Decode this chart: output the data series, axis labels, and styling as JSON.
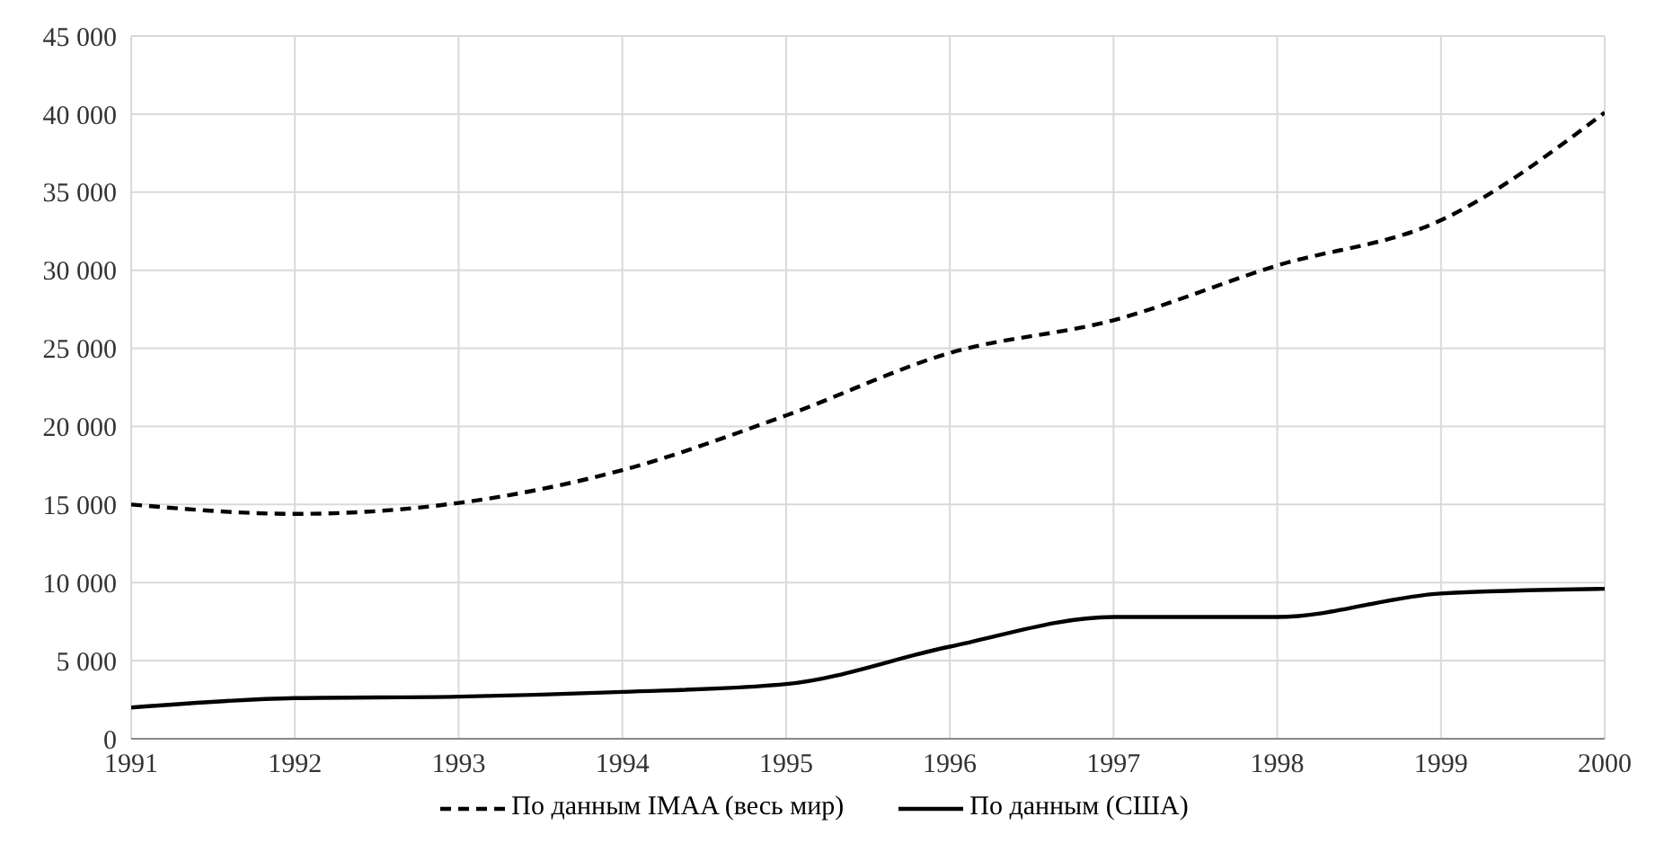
{
  "chart_data": {
    "type": "line",
    "x": [
      1991,
      1992,
      1993,
      1994,
      1995,
      1996,
      1997,
      1998,
      1999,
      2000
    ],
    "series": [
      {
        "name": "По данным IMAA (весь мир)",
        "color": "#000000",
        "line_style": "dashed",
        "values": [
          15000,
          14400,
          15100,
          17200,
          20700,
          24700,
          26800,
          30300,
          33200,
          40100
        ]
      },
      {
        "name": "По данным (США)",
        "color": "#000000",
        "line_style": "solid",
        "values": [
          2000,
          2600,
          2700,
          3000,
          3500,
          5900,
          7800,
          7800,
          9300,
          9600
        ]
      }
    ],
    "xlim": [
      1991,
      2000
    ],
    "xticks": [
      1991,
      1992,
      1993,
      1994,
      1995,
      1996,
      1997,
      1998,
      1999,
      2000
    ],
    "ylim": [
      0,
      45000
    ],
    "yticks": [
      {
        "value": 0,
        "label": "0"
      },
      {
        "value": 5000,
        "label": "5 000"
      },
      {
        "value": 10000,
        "label": "10 000"
      },
      {
        "value": 15000,
        "label": "15 000"
      },
      {
        "value": 20000,
        "label": "20 000"
      },
      {
        "value": 25000,
        "label": "25 000"
      },
      {
        "value": 30000,
        "label": "30 000"
      },
      {
        "value": 35000,
        "label": "35 000"
      },
      {
        "value": 40000,
        "label": "40 000"
      },
      {
        "value": 45000,
        "label": "45 000"
      }
    ],
    "grid": true,
    "legend": "bottom",
    "marker": "none"
  }
}
